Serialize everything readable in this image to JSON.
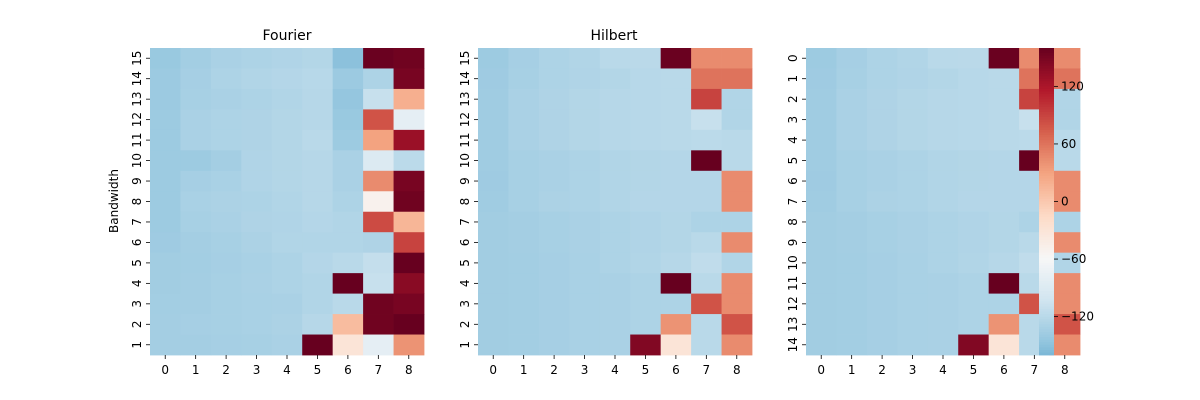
{
  "chart_data": {
    "type": "heatmap",
    "colormap": "RdBu_r",
    "colorbar": {
      "vmin": -160,
      "vmax": 160,
      "ticks": [
        -120,
        -60,
        0,
        60,
        120
      ],
      "tick_labels": [
        "−120",
        "−60",
        "0",
        "60",
        "120"
      ]
    },
    "panels": [
      {
        "title": "Fourier",
        "ylabel": "Bandwidth",
        "x_tick_labels": [
          "0",
          "1",
          "2",
          "3",
          "4",
          "5",
          "6",
          "7",
          "8"
        ],
        "y_tick_labels": [
          "15",
          "14",
          "13",
          "12",
          "11",
          "10",
          "9",
          "8",
          "7",
          "6",
          "5",
          "4",
          "3",
          "2",
          "1"
        ],
        "values": [
          [
            -142,
            -135,
            -130,
            -128,
            -126,
            -124,
            -150,
            158,
            155
          ],
          [
            -140,
            -133,
            -128,
            -125,
            -123,
            -121,
            -140,
            -128,
            150
          ],
          [
            -140,
            -132,
            -130,
            -128,
            -125,
            -122,
            -145,
            -110,
            20
          ],
          [
            -139,
            -130,
            -128,
            -127,
            -124,
            -122,
            -142,
            80,
            -80
          ],
          [
            -139,
            -130,
            -128,
            -127,
            -124,
            -120,
            -139,
            30,
            130
          ],
          [
            -139,
            -139,
            -134,
            -126,
            -124,
            -122,
            -130,
            -90,
            -118
          ],
          [
            -139,
            -133,
            -131,
            -126,
            -124,
            -122,
            -130,
            45,
            150
          ],
          [
            -139,
            -131,
            -129,
            -128,
            -125,
            -122,
            -128,
            -50,
            155
          ],
          [
            -139,
            -132,
            -130,
            -127,
            -126,
            -123,
            -125,
            85,
            15
          ],
          [
            -138,
            -134,
            -132,
            -129,
            -125,
            -125,
            -125,
            -127,
            90
          ],
          [
            -136,
            -135,
            -133,
            -131,
            -128,
            -123,
            -120,
            -112,
            160
          ],
          [
            -136,
            -134,
            -132,
            -130,
            -128,
            -125,
            160,
            -110,
            140
          ],
          [
            -135,
            -134,
            -132,
            -131,
            -130,
            -125,
            -120,
            155,
            150
          ],
          [
            -134,
            -133,
            -132,
            -131,
            -129,
            -122,
            10,
            155,
            160
          ],
          [
            -134,
            -134,
            -133,
            -132,
            -130,
            160,
            -30,
            -80,
            40
          ]
        ]
      },
      {
        "title": "Hilbert",
        "ylabel": "",
        "x_tick_labels": [
          "0",
          "1",
          "2",
          "3",
          "4",
          "5",
          "6",
          "7",
          "8"
        ],
        "y_tick_labels": [
          "15",
          "14",
          "13",
          "12",
          "11",
          "10",
          "9",
          "8",
          "7",
          "6",
          "5",
          "4",
          "3",
          "2",
          "1"
        ],
        "values": [
          [
            -139,
            -133,
            -128,
            -125,
            -120,
            -119,
            158,
            45,
            45
          ],
          [
            -138,
            -132,
            -128,
            -126,
            -124,
            -121,
            -120,
            60,
            60
          ],
          [
            -137,
            -130,
            -127,
            -124,
            -122,
            -121,
            -120,
            90,
            -125
          ],
          [
            -137,
            -130,
            -127,
            -124,
            -122,
            -121,
            -120,
            -110,
            -125
          ],
          [
            -137,
            -130,
            -127,
            -124,
            -122,
            -121,
            -120,
            -118,
            -120
          ],
          [
            -137,
            -132,
            -130,
            -128,
            -125,
            -124,
            -123,
            160,
            -120
          ],
          [
            -138,
            -132,
            -130,
            -128,
            -125,
            -124,
            -123,
            -123,
            45
          ],
          [
            -137,
            -132,
            -129,
            -128,
            -125,
            -123,
            -123,
            -123,
            45
          ],
          [
            -136,
            -134,
            -132,
            -130,
            -128,
            -126,
            -124,
            -128,
            -128
          ],
          [
            -136,
            -134,
            -132,
            -130,
            -128,
            -126,
            -124,
            -120,
            45
          ],
          [
            -136,
            -135,
            -133,
            -131,
            -128,
            -125,
            -122,
            -115,
            -125
          ],
          [
            -136,
            -135,
            -133,
            -131,
            -130,
            -128,
            160,
            -120,
            45
          ],
          [
            -136,
            -135,
            -133,
            -131,
            -130,
            -128,
            -128,
            80,
            45
          ],
          [
            -136,
            -135,
            -133,
            -131,
            -130,
            -128,
            40,
            -120,
            80
          ],
          [
            -136,
            -135,
            -133,
            -131,
            -130,
            145,
            -30,
            -120,
            45
          ]
        ]
      },
      {
        "title": "",
        "ylabel": "",
        "x_tick_labels": [
          "0",
          "1",
          "2",
          "3",
          "4",
          "5",
          "6",
          "7",
          "8"
        ],
        "y_tick_labels": [
          "0",
          "1",
          "2",
          "3",
          "4",
          "5",
          "6",
          "7",
          "8",
          "9",
          "10",
          "11",
          "12",
          "13",
          "14"
        ],
        "values": [
          [
            -139,
            -133,
            -128,
            -125,
            -120,
            -119,
            158,
            45,
            45
          ],
          [
            -138,
            -132,
            -128,
            -126,
            -124,
            -121,
            -120,
            60,
            60
          ],
          [
            -137,
            -130,
            -127,
            -124,
            -122,
            -121,
            -120,
            90,
            -125
          ],
          [
            -137,
            -130,
            -127,
            -124,
            -122,
            -121,
            -120,
            -110,
            -125
          ],
          [
            -137,
            -130,
            -127,
            -124,
            -122,
            -121,
            -120,
            -118,
            -120
          ],
          [
            -137,
            -132,
            -130,
            -128,
            -125,
            -124,
            -123,
            160,
            -120
          ],
          [
            -138,
            -132,
            -130,
            -128,
            -125,
            -124,
            -123,
            -123,
            45
          ],
          [
            -137,
            -132,
            -129,
            -128,
            -125,
            -123,
            -123,
            -123,
            45
          ],
          [
            -136,
            -134,
            -132,
            -130,
            -128,
            -126,
            -124,
            -128,
            -128
          ],
          [
            -136,
            -134,
            -132,
            -130,
            -128,
            -126,
            -124,
            -120,
            45
          ],
          [
            -136,
            -135,
            -133,
            -131,
            -128,
            -125,
            -122,
            -115,
            -125
          ],
          [
            -136,
            -135,
            -133,
            -131,
            -130,
            -128,
            160,
            -120,
            45
          ],
          [
            -136,
            -135,
            -133,
            -131,
            -130,
            -128,
            -128,
            80,
            45
          ],
          [
            -136,
            -135,
            -133,
            -131,
            -130,
            -128,
            40,
            -120,
            80
          ],
          [
            -136,
            -135,
            -133,
            -131,
            -130,
            145,
            -30,
            -120,
            45
          ]
        ]
      }
    ]
  }
}
